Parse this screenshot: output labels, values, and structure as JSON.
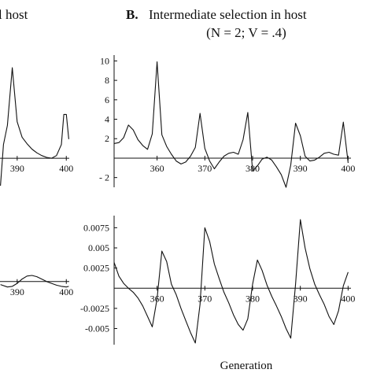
{
  "header": {
    "left_title_fragment": "l host",
    "panel_letter": "B.",
    "panel_title": "Intermediate selection in host",
    "panel_subtitle": "(N = 2; V = .4)"
  },
  "footer": {
    "xlabel": "Generation"
  },
  "chart_data": [
    {
      "id": "A-top-fragment",
      "type": "line",
      "title": "",
      "xlabel": "",
      "ylabel": "",
      "xlim": [
        386.5,
        400.6
      ],
      "ylim": [
        -3,
        10.6
      ],
      "x_ticks": [
        390,
        400
      ],
      "x_tick_labels": [
        "390",
        "400"
      ],
      "series": [
        {
          "x": [
            386.6,
            387.2,
            388,
            389,
            390,
            391,
            392,
            393,
            394,
            395,
            396,
            397,
            398,
            399,
            399.5,
            400,
            400.5
          ],
          "y": [
            -3,
            1.5,
            3.6,
            9.9,
            4,
            2.3,
            1.6,
            1.0,
            0.6,
            0.3,
            0.1,
            0.0,
            0.3,
            1.5,
            4.8,
            4.8,
            2.1
          ]
        }
      ]
    },
    {
      "id": "A-bottom-fragment",
      "type": "line",
      "title": "",
      "xlabel": "",
      "ylabel": "",
      "xlim": [
        386.5,
        400.6
      ],
      "ylim": [
        -0.007,
        0.009
      ],
      "x_ticks": [
        390,
        400
      ],
      "x_tick_labels": [
        "390",
        "400"
      ],
      "series": [
        {
          "x": [
            386.6,
            388,
            389,
            390,
            391,
            392,
            393,
            394,
            395,
            396,
            397,
            398,
            399,
            400,
            400.5
          ],
          "y": [
            -0.0005,
            -0.0009,
            -0.0008,
            -0.0003,
            0.0004,
            0.0009,
            0.001,
            0.0008,
            0.0004,
            0.0,
            -0.0003,
            -0.0006,
            -0.0008,
            -0.0009,
            -0.0008
          ]
        }
      ]
    },
    {
      "id": "B-top",
      "type": "line",
      "title": "Intermediate selection in host",
      "xlabel": "",
      "ylabel": "",
      "xlim": [
        351,
        400.6
      ],
      "ylim": [
        -3,
        10.6
      ],
      "x_ticks": [
        360,
        370,
        380,
        390,
        400
      ],
      "x_tick_labels": [
        "360",
        "370",
        "380",
        "390",
        "400"
      ],
      "y_ticks": [
        -2,
        2,
        4,
        6,
        8,
        10
      ],
      "y_tick_labels": [
        "- 2",
        "2",
        "4",
        "6",
        "8",
        "10"
      ],
      "series": [
        {
          "x": [
            351,
            352,
            353,
            354,
            355,
            356,
            357,
            358,
            359,
            360,
            361,
            362,
            363,
            364,
            365,
            366,
            367,
            368,
            369,
            370,
            371,
            372,
            373,
            374,
            375,
            376,
            377,
            378,
            379,
            380,
            381,
            382,
            383,
            384,
            385,
            386,
            387,
            388,
            389,
            390,
            391,
            392,
            393,
            394,
            395,
            396,
            397,
            398,
            399,
            400
          ],
          "y": [
            1.5,
            1.6,
            2.1,
            3.4,
            2.9,
            1.9,
            1.3,
            0.9,
            2.5,
            9.9,
            2.4,
            1.2,
            0.4,
            -0.3,
            -0.6,
            -0.4,
            0.2,
            1.1,
            4.6,
            1.0,
            -0.3,
            -1.1,
            -0.4,
            0.2,
            0.5,
            0.6,
            0.4,
            1.9,
            4.7,
            -1.3,
            -0.8,
            -0.1,
            0.1,
            -0.2,
            -0.9,
            -1.7,
            -3.0,
            -0.7,
            3.6,
            2.3,
            0.2,
            -0.3,
            -0.2,
            0.1,
            0.5,
            0.6,
            0.4,
            0.3,
            3.7,
            -0.5
          ]
        }
      ]
    },
    {
      "id": "B-bottom",
      "type": "line",
      "title": "",
      "xlabel": "Generation",
      "ylabel": "",
      "xlim": [
        351,
        400.6
      ],
      "ylim": [
        -0.007,
        0.009
      ],
      "x_ticks": [
        360,
        370,
        380,
        390,
        400
      ],
      "x_tick_labels": [
        "360",
        "370",
        "380",
        "390",
        "400"
      ],
      "y_ticks": [
        -0.005,
        -0.0025,
        0.0025,
        0.005,
        0.0075
      ],
      "y_tick_labels": [
        "-0.005",
        "-0.0025",
        "0.0025",
        "0.005",
        "0.0075"
      ],
      "series": [
        {
          "x": [
            351,
            352,
            353,
            354,
            355,
            356,
            357,
            358,
            359,
            360,
            361,
            362,
            363,
            364,
            365,
            366,
            367,
            368,
            369,
            370,
            371,
            372,
            373,
            374,
            375,
            376,
            377,
            378,
            379,
            380,
            381,
            382,
            383,
            384,
            385,
            386,
            387,
            388,
            389,
            390,
            391,
            392,
            393,
            394,
            395,
            396,
            397,
            398,
            399,
            400
          ],
          "y": [
            0.0032,
            0.0015,
            0.0006,
            0.0,
            -0.0005,
            -0.0012,
            -0.0022,
            -0.0035,
            -0.0048,
            -0.0013,
            0.0046,
            0.0033,
            0.0005,
            -0.0008,
            -0.0025,
            -0.004,
            -0.0055,
            -0.0068,
            -0.002,
            0.0075,
            0.0058,
            0.003,
            0.0012,
            -0.0005,
            -0.0018,
            -0.0033,
            -0.0045,
            -0.0052,
            -0.0038,
            0.0005,
            0.0035,
            0.0022,
            0.0004,
            -0.001,
            -0.0022,
            -0.0035,
            -0.005,
            -0.0062,
            0.0005,
            0.0085,
            0.005,
            0.0024,
            0.0005,
            -0.0008,
            -0.002,
            -0.0035,
            -0.0045,
            -0.0028,
            0.0003,
            0.002
          ]
        }
      ]
    }
  ]
}
